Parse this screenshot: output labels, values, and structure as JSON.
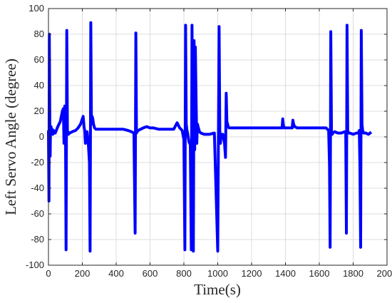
{
  "chart_data": {
    "type": "line",
    "title": "",
    "xlabel": "Time(s)",
    "ylabel": "Left Servo Angle (degree)",
    "xlim": [
      0,
      2000
    ],
    "ylim": [
      -100,
      100
    ],
    "xticks": [
      0,
      200,
      400,
      600,
      800,
      1000,
      1200,
      1400,
      1600,
      1800,
      2000
    ],
    "yticks": [
      -100,
      -80,
      -60,
      -40,
      -20,
      0,
      20,
      40,
      60,
      80,
      100
    ],
    "grid": true,
    "legend": "none",
    "series": [
      {
        "color": "#0000ff",
        "x": [
          0,
          3,
          5,
          8,
          10,
          12,
          15,
          18,
          22,
          26,
          30,
          40,
          55,
          70,
          82,
          88,
          92,
          96,
          100,
          104,
          108,
          112,
          118,
          125,
          140,
          160,
          175,
          190,
          200,
          205,
          210,
          214,
          218,
          222,
          228,
          236,
          242,
          246,
          250,
          254,
          258,
          262,
          266,
          272,
          280,
          300,
          330,
          360,
          400,
          440,
          470,
          490,
          505,
          512,
          516,
          520,
          524,
          530,
          545,
          560,
          580,
          600,
          620,
          650,
          700,
          740,
          760,
          775,
          790,
          800,
          806,
          810,
          814,
          818,
          822,
          830,
          838,
          844,
          848,
          852,
          856,
          860,
          864,
          868,
          872,
          876,
          880,
          884,
          888,
          892,
          900,
          920,
          950,
          980,
          1000,
          1008,
          1012,
          1016,
          1020,
          1024,
          1030,
          1040,
          1046,
          1050,
          1054,
          1058,
          1062,
          1066,
          1072,
          1080,
          1100,
          1150,
          1200,
          1250,
          1300,
          1350,
          1380,
          1384,
          1388,
          1392,
          1400,
          1420,
          1440,
          1444,
          1448,
          1454,
          1470,
          1500,
          1550,
          1600,
          1640,
          1655,
          1660,
          1664,
          1668,
          1672,
          1676,
          1680,
          1690,
          1710,
          1730,
          1750,
          1756,
          1760,
          1764,
          1768,
          1772,
          1780,
          1800,
          1820,
          1830,
          1836,
          1840,
          1844,
          1848,
          1852,
          1856,
          1862,
          1875,
          1890,
          1900
        ],
        "y": [
          4,
          -50,
          80,
          10,
          -15,
          5,
          8,
          3,
          6,
          2,
          5,
          3,
          8,
          12,
          20,
          22,
          -5,
          24,
          18,
          -88,
          83,
          5,
          2,
          3,
          4,
          5,
          7,
          10,
          14,
          16,
          8,
          5,
          -5,
          3,
          4,
          -6,
          -20,
          -89,
          89,
          10,
          16,
          14,
          10,
          7,
          6,
          6,
          6,
          6,
          6,
          6,
          5,
          4,
          3,
          -75,
          81,
          3,
          4,
          5,
          6,
          7,
          8,
          7,
          7,
          6,
          6,
          6,
          11,
          7,
          5,
          -2,
          -88,
          87,
          10,
          5,
          3,
          -4,
          -6,
          -88,
          87,
          10,
          -89,
          75,
          -10,
          70,
          30,
          -5,
          10,
          8,
          6,
          4,
          3,
          2,
          2,
          3,
          -89,
          86,
          5,
          -5,
          2,
          2,
          2,
          -5,
          -16,
          34,
          12,
          10,
          8,
          7,
          7,
          7,
          7,
          7,
          7,
          7,
          7,
          7,
          7,
          14,
          9,
          7,
          7,
          7,
          7,
          13,
          10,
          8,
          7,
          7,
          7,
          7,
          7,
          5,
          -22,
          -86,
          82,
          4,
          2,
          3,
          4,
          3,
          3,
          4,
          3,
          -75,
          87,
          5,
          3,
          3,
          2,
          3,
          3,
          5,
          -23,
          -86,
          83,
          10,
          5,
          3,
          3,
          2,
          3
        ]
      }
    ]
  }
}
